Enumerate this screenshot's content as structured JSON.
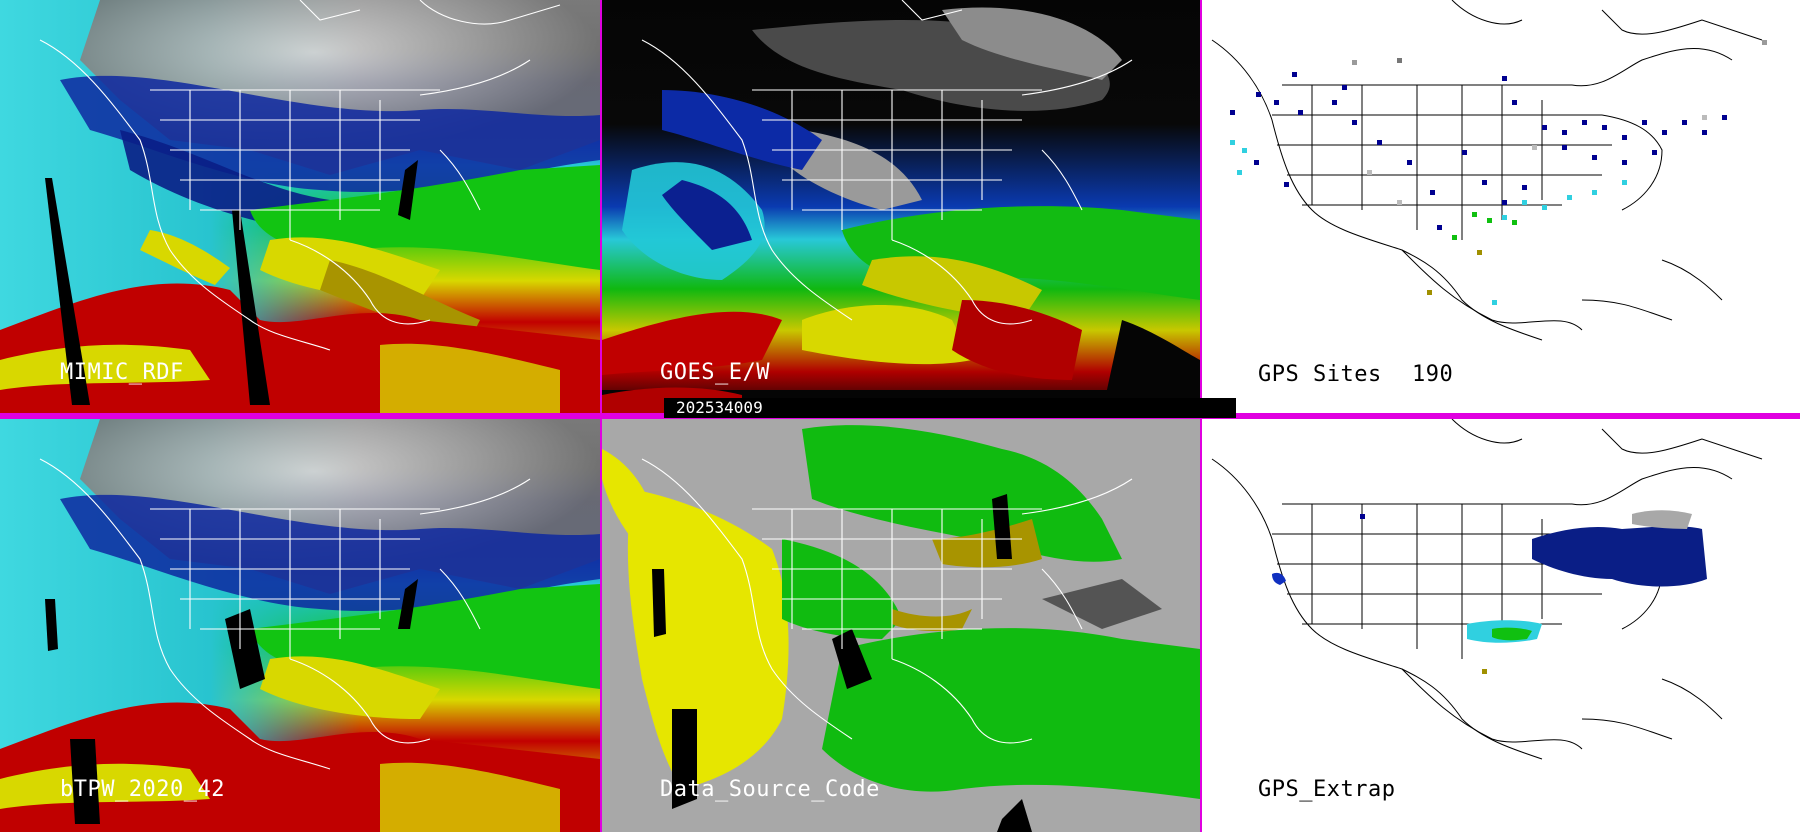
{
  "panels": [
    {
      "id": "mimic",
      "label": "MIMIC_RDF"
    },
    {
      "id": "goes",
      "label": "GOES_E/W"
    },
    {
      "id": "gps-sites",
      "label": "GPS Sites",
      "count": "190"
    },
    {
      "id": "btpw",
      "label": "bTPW_2020_42"
    },
    {
      "id": "data-source",
      "label": "Data_Source_Code"
    },
    {
      "id": "gps-extrap",
      "label": "GPS_Extrap"
    }
  ],
  "timestamp": "202534009",
  "colors": {
    "divider": "#e000e0",
    "tpw_low": "#000090",
    "tpw_mid_low": "#1030c0",
    "tpw_cyan": "#30d8e0",
    "tpw_green": "#10c010",
    "tpw_yellow": "#e0e000",
    "tpw_olive": "#a09000",
    "tpw_red": "#c00000",
    "dry_gray": "#9a9a9a",
    "data_gray": "#a8a8a8",
    "data_yellow": "#e6e600",
    "data_green": "#10bb10"
  }
}
